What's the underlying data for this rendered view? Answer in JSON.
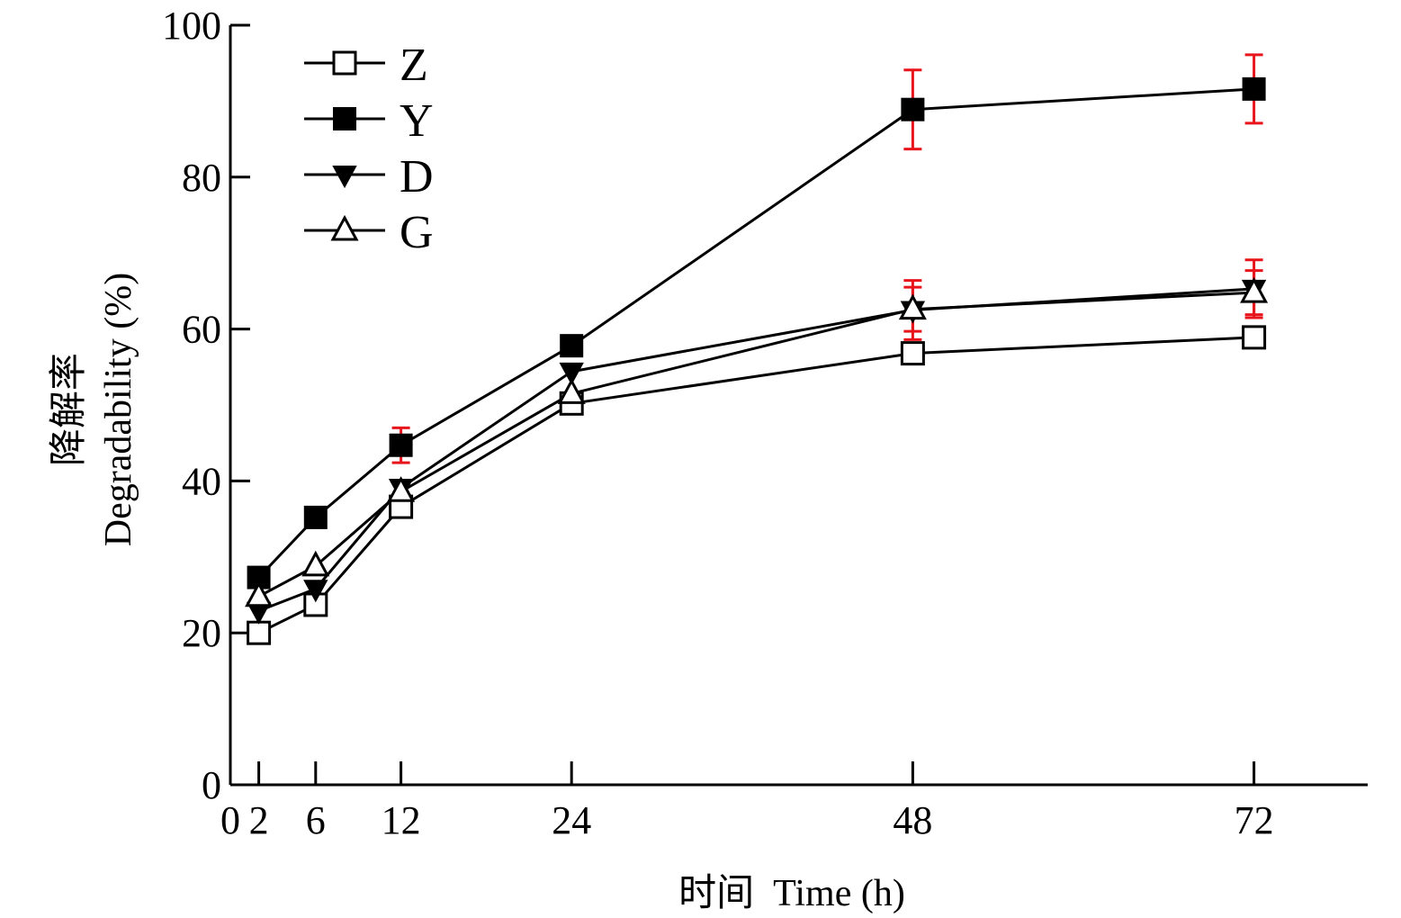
{
  "chart_data": {
    "type": "line",
    "title": "",
    "xlabel": "时间  Time (h)",
    "ylabel_cn": "降解率",
    "ylabel_en": "Degradability (%)",
    "x": [
      2,
      6,
      12,
      24,
      48,
      72
    ],
    "xlim": [
      0,
      80
    ],
    "ylim": [
      0,
      100
    ],
    "x_ticks": [
      0,
      2,
      6,
      12,
      24,
      48,
      72
    ],
    "x_tick_labels": [
      "0",
      "2",
      "6",
      "12",
      "24",
      "48",
      "72"
    ],
    "y_ticks": [
      0,
      20,
      40,
      60,
      80,
      100
    ],
    "y_tick_labels": [
      "0",
      "20",
      "40",
      "60",
      "80",
      "100"
    ],
    "grid": false,
    "legend_position": "top-left",
    "series": [
      {
        "name": "Z",
        "marker": "square-open",
        "values": [
          20.0,
          23.7,
          36.6,
          50.2,
          56.8,
          58.9
        ],
        "errors": [
          0,
          0,
          0,
          0,
          0,
          0
        ]
      },
      {
        "name": "Y",
        "marker": "square-filled",
        "values": [
          27.3,
          35.2,
          44.7,
          57.8,
          88.9,
          91.6
        ],
        "errors": [
          0,
          0,
          2.3,
          0,
          5.2,
          4.5
        ]
      },
      {
        "name": "D",
        "marker": "triangle-down-filled",
        "values": [
          22.9,
          25.8,
          39.1,
          54.4,
          62.5,
          65.3
        ],
        "errors": [
          0,
          0,
          0,
          0,
          3.9,
          3.8
        ]
      },
      {
        "name": "G",
        "marker": "triangle-up-open",
        "values": [
          24.8,
          28.8,
          38.6,
          51.5,
          62.6,
          64.8
        ],
        "errors": [
          0,
          0,
          0,
          0,
          2.9,
          2.9
        ]
      }
    ],
    "colors": {
      "line": "#000000",
      "error_bar": "#e8141c",
      "background": "#ffffff"
    }
  }
}
